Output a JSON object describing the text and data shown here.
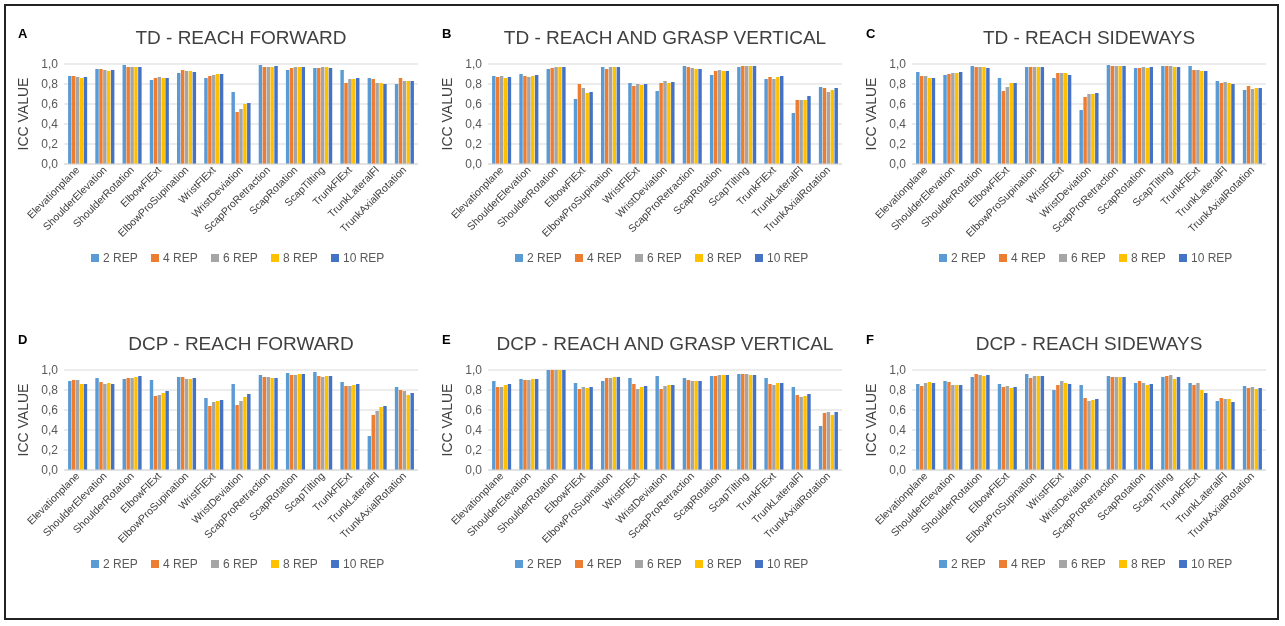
{
  "chart_data": [
    {
      "type": "bar",
      "annotations": [
        "A"
      ],
      "title": "TD - REACH FORWARD",
      "ylabel": "ICC VALUE",
      "categories": [
        "Elevationplane",
        "ShoulderElevation",
        "ShoulderRotation",
        "ElbowFlExt",
        "ElbowProSupination",
        "WristFlExt",
        "WristDeviation",
        "ScapProRetraction",
        "ScapRotation",
        "ScapTilting",
        "TrunkFlExt",
        "TrunkLateralFl",
        "TrunkAxialRotation"
      ],
      "ylim": [
        0,
        1
      ],
      "yticks": [
        {
          "value": 0,
          "label": "0,0"
        },
        {
          "value": 0.2,
          "label": "0,2"
        },
        {
          "value": 0.4,
          "label": "0,4"
        },
        {
          "value": 0.6,
          "label": "0,6"
        },
        {
          "value": 0.8,
          "label": "0,8"
        },
        {
          "value": 1,
          "label": "1,0"
        }
      ],
      "grid": "y",
      "legend": "bottom",
      "series": [
        {
          "name": "2 REP",
          "color": "#5b9bd5",
          "values": [
            0.88,
            0.95,
            0.99,
            0.84,
            0.91,
            0.86,
            0.72,
            0.99,
            0.94,
            0.96,
            0.94,
            0.86,
            0.8
          ]
        },
        {
          "name": "4 REP",
          "color": "#ed7d31",
          "values": [
            0.88,
            0.95,
            0.97,
            0.86,
            0.94,
            0.88,
            0.52,
            0.97,
            0.96,
            0.96,
            0.81,
            0.85,
            0.86
          ]
        },
        {
          "name": "6 REP",
          "color": "#a5a5a5",
          "values": [
            0.87,
            0.94,
            0.97,
            0.87,
            0.93,
            0.89,
            0.55,
            0.97,
            0.97,
            0.97,
            0.85,
            0.81,
            0.83
          ]
        },
        {
          "name": "8 REP",
          "color": "#ffc000",
          "values": [
            0.86,
            0.93,
            0.97,
            0.86,
            0.93,
            0.9,
            0.6,
            0.97,
            0.97,
            0.97,
            0.85,
            0.81,
            0.83
          ]
        },
        {
          "name": "10 REP",
          "color": "#4472c4",
          "values": [
            0.87,
            0.94,
            0.97,
            0.86,
            0.92,
            0.9,
            0.61,
            0.98,
            0.97,
            0.96,
            0.86,
            0.8,
            0.83
          ]
        }
      ]
    },
    {
      "type": "bar",
      "annotations": [
        "B"
      ],
      "title": "TD - REACH AND GRASP VERTICAL",
      "ylabel": "ICC VALUE",
      "categories": [
        "Elevationplane",
        "ShoulderElevation",
        "ShoulderRotation",
        "ElbowFlExt",
        "ElbowProSupination",
        "WristFlExt",
        "WristDeviation",
        "ScapProRetraction",
        "ScapRotation",
        "ScapTilting",
        "TrunkFlExt",
        "TrunkLateralFl",
        "TrunkAxialRotation"
      ],
      "ylim": [
        0,
        1
      ],
      "yticks": [
        {
          "value": 0,
          "label": "0,0"
        },
        {
          "value": 0.2,
          "label": "0,2"
        },
        {
          "value": 0.4,
          "label": "0,4"
        },
        {
          "value": 0.6,
          "label": "0,6"
        },
        {
          "value": 0.8,
          "label": "0,8"
        },
        {
          "value": 1,
          "label": "1,0"
        }
      ],
      "grid": "y",
      "legend": "bottom",
      "series": [
        {
          "name": "2 REP",
          "color": "#5b9bd5",
          "values": [
            0.88,
            0.9,
            0.95,
            0.65,
            0.97,
            0.81,
            0.73,
            0.98,
            0.89,
            0.97,
            0.85,
            0.51,
            0.77
          ]
        },
        {
          "name": "4 REP",
          "color": "#ed7d31",
          "values": [
            0.87,
            0.88,
            0.96,
            0.8,
            0.95,
            0.78,
            0.81,
            0.97,
            0.93,
            0.98,
            0.87,
            0.64,
            0.76
          ]
        },
        {
          "name": "6 REP",
          "color": "#a5a5a5",
          "values": [
            0.88,
            0.87,
            0.97,
            0.76,
            0.97,
            0.8,
            0.83,
            0.96,
            0.94,
            0.98,
            0.85,
            0.64,
            0.72
          ]
        },
        {
          "name": "8 REP",
          "color": "#ffc000",
          "values": [
            0.86,
            0.88,
            0.97,
            0.71,
            0.97,
            0.79,
            0.81,
            0.95,
            0.93,
            0.98,
            0.87,
            0.64,
            0.74
          ]
        },
        {
          "name": "10 REP",
          "color": "#4472c4",
          "values": [
            0.87,
            0.89,
            0.97,
            0.72,
            0.97,
            0.8,
            0.82,
            0.95,
            0.93,
            0.98,
            0.88,
            0.68,
            0.76
          ]
        }
      ]
    },
    {
      "type": "bar",
      "annotations": [
        "C"
      ],
      "title": "TD - REACH SIDEWAYS",
      "ylabel": "ICC VALUE",
      "categories": [
        "Elevationplane",
        "ShoulderElevation",
        "ShoulderRotation",
        "ElbowFlExt",
        "ElbowProSupination",
        "WristFlExt",
        "WristDeviation",
        "ScapProRetraction",
        "ScapRotation",
        "ScapTilting",
        "TrunkFlExt",
        "TrunkLateralFl",
        "TrunkAxialRotation"
      ],
      "ylim": [
        0,
        1
      ],
      "yticks": [
        {
          "value": 0,
          "label": "0,0"
        },
        {
          "value": 0.2,
          "label": "0,2"
        },
        {
          "value": 0.4,
          "label": "0,4"
        },
        {
          "value": 0.6,
          "label": "0,6"
        },
        {
          "value": 0.8,
          "label": "0,8"
        },
        {
          "value": 1,
          "label": "1,0"
        }
      ],
      "grid": "y",
      "legend": "bottom",
      "series": [
        {
          "name": "2 REP",
          "color": "#5b9bd5",
          "values": [
            0.92,
            0.89,
            0.98,
            0.86,
            0.97,
            0.86,
            0.54,
            0.99,
            0.96,
            0.98,
            0.98,
            0.83,
            0.74
          ]
        },
        {
          "name": "4 REP",
          "color": "#ed7d31",
          "values": [
            0.88,
            0.9,
            0.97,
            0.73,
            0.97,
            0.91,
            0.67,
            0.98,
            0.96,
            0.98,
            0.94,
            0.81,
            0.78
          ]
        },
        {
          "name": "6 REP",
          "color": "#a5a5a5",
          "values": [
            0.88,
            0.91,
            0.97,
            0.77,
            0.97,
            0.91,
            0.7,
            0.98,
            0.97,
            0.98,
            0.94,
            0.82,
            0.75
          ]
        },
        {
          "name": "8 REP",
          "color": "#ffc000",
          "values": [
            0.86,
            0.91,
            0.97,
            0.81,
            0.97,
            0.91,
            0.7,
            0.98,
            0.96,
            0.97,
            0.93,
            0.81,
            0.76
          ]
        },
        {
          "name": "10 REP",
          "color": "#4472c4",
          "values": [
            0.86,
            0.92,
            0.96,
            0.81,
            0.97,
            0.89,
            0.71,
            0.98,
            0.97,
            0.97,
            0.93,
            0.8,
            0.76
          ]
        }
      ]
    },
    {
      "type": "bar",
      "annotations": [
        "D"
      ],
      "title": "DCP - REACH FORWARD",
      "ylabel": "ICC VALUE",
      "categories": [
        "Elevationplane",
        "ShoulderElevation",
        "ShoulderRotation",
        "ElbowFlExt",
        "ElbowProSupination",
        "WristFlExt",
        "WristDeviation",
        "ScapProRetraction",
        "ScapRotation",
        "ScapTilting",
        "TrunkFlExt",
        "TrunkLateralFl",
        "TrunkAxialRotation"
      ],
      "ylim": [
        0,
        1
      ],
      "yticks": [
        {
          "value": 0,
          "label": "0,0"
        },
        {
          "value": 0.2,
          "label": "0,2"
        },
        {
          "value": 0.4,
          "label": "0,4"
        },
        {
          "value": 0.6,
          "label": "0,6"
        },
        {
          "value": 0.8,
          "label": "0,8"
        },
        {
          "value": 1,
          "label": "1,0"
        }
      ],
      "grid": "y",
      "legend": "bottom",
      "series": [
        {
          "name": "2 REP",
          "color": "#5b9bd5",
          "values": [
            0.89,
            0.92,
            0.91,
            0.9,
            0.93,
            0.72,
            0.86,
            0.95,
            0.97,
            0.98,
            0.88,
            0.34,
            0.83
          ]
        },
        {
          "name": "4 REP",
          "color": "#ed7d31",
          "values": [
            0.9,
            0.88,
            0.92,
            0.74,
            0.93,
            0.64,
            0.65,
            0.93,
            0.95,
            0.94,
            0.84,
            0.55,
            0.8
          ]
        },
        {
          "name": "6 REP",
          "color": "#a5a5a5",
          "values": [
            0.9,
            0.86,
            0.92,
            0.75,
            0.91,
            0.68,
            0.69,
            0.93,
            0.95,
            0.93,
            0.84,
            0.59,
            0.79
          ]
        },
        {
          "name": "8 REP",
          "color": "#ffc000",
          "values": [
            0.86,
            0.87,
            0.93,
            0.77,
            0.91,
            0.69,
            0.73,
            0.92,
            0.96,
            0.94,
            0.85,
            0.63,
            0.75
          ]
        },
        {
          "name": "10 REP",
          "color": "#4472c4",
          "values": [
            0.86,
            0.86,
            0.94,
            0.79,
            0.92,
            0.7,
            0.76,
            0.92,
            0.96,
            0.94,
            0.86,
            0.64,
            0.77
          ]
        }
      ]
    },
    {
      "type": "bar",
      "annotations": [
        "E"
      ],
      "title": "DCP - REACH AND GRASP VERTICAL",
      "ylabel": "ICC VALUE",
      "categories": [
        "Elevationplane",
        "ShoulderElevation",
        "ShoulderRotation",
        "ElbowFlExt",
        "ElbowProSupination",
        "WristFlExt",
        "WristDeviation",
        "ScapProRetraction",
        "ScapRotation",
        "ScapTilting",
        "TrunkFlExt",
        "TrunkLateralFl",
        "TrunkAxialRotation"
      ],
      "ylim": [
        0,
        1
      ],
      "yticks": [
        {
          "value": 0,
          "label": "0,0"
        },
        {
          "value": 0.2,
          "label": "0,2"
        },
        {
          "value": 0.4,
          "label": "0,4"
        },
        {
          "value": 0.6,
          "label": "0,6"
        },
        {
          "value": 0.8,
          "label": "0,8"
        },
        {
          "value": 1,
          "label": "1,0"
        }
      ],
      "grid": "y",
      "legend": "bottom",
      "series": [
        {
          "name": "2 REP",
          "color": "#5b9bd5",
          "values": [
            0.89,
            0.91,
            1.0,
            0.87,
            0.89,
            0.92,
            0.94,
            0.92,
            0.94,
            0.96,
            0.92,
            0.83,
            0.44
          ]
        },
        {
          "name": "4 REP",
          "color": "#ed7d31",
          "values": [
            0.83,
            0.9,
            1.0,
            0.81,
            0.92,
            0.86,
            0.81,
            0.9,
            0.94,
            0.96,
            0.86,
            0.75,
            0.57
          ]
        },
        {
          "name": "6 REP",
          "color": "#a5a5a5",
          "values": [
            0.83,
            0.9,
            1.0,
            0.83,
            0.92,
            0.81,
            0.84,
            0.89,
            0.95,
            0.96,
            0.85,
            0.73,
            0.58
          ]
        },
        {
          "name": "8 REP",
          "color": "#ffc000",
          "values": [
            0.85,
            0.91,
            1.0,
            0.82,
            0.93,
            0.83,
            0.85,
            0.89,
            0.95,
            0.95,
            0.87,
            0.74,
            0.55
          ]
        },
        {
          "name": "10 REP",
          "color": "#4472c4",
          "values": [
            0.86,
            0.91,
            1.0,
            0.83,
            0.93,
            0.84,
            0.85,
            0.89,
            0.95,
            0.95,
            0.87,
            0.76,
            0.58
          ]
        }
      ]
    },
    {
      "type": "bar",
      "annotations": [
        "F"
      ],
      "title": "DCP - REACH SIDEWAYS",
      "ylabel": "ICC VALUE",
      "categories": [
        "Elevationplane",
        "ShoulderElevation",
        "ShoulderRotation",
        "ElbowFlExt",
        "ElbowProSupination",
        "WristFlExt",
        "WristDeviation",
        "ScapProRetraction",
        "ScapRotation",
        "ScapTilting",
        "TrunkFlExt",
        "TrunkLateralFl",
        "TrunkAxialRotation"
      ],
      "ylim": [
        0,
        1
      ],
      "yticks": [
        {
          "value": 0,
          "label": "0,0"
        },
        {
          "value": 0.2,
          "label": "0,2"
        },
        {
          "value": 0.4,
          "label": "0,4"
        },
        {
          "value": 0.6,
          "label": "0,6"
        },
        {
          "value": 0.8,
          "label": "0,8"
        },
        {
          "value": 1,
          "label": "1,0"
        }
      ],
      "grid": "y",
      "legend": "bottom",
      "series": [
        {
          "name": "2 REP",
          "color": "#5b9bd5",
          "values": [
            0.86,
            0.89,
            0.93,
            0.86,
            0.96,
            0.8,
            0.85,
            0.94,
            0.87,
            0.93,
            0.87,
            0.69,
            0.84
          ]
        },
        {
          "name": "4 REP",
          "color": "#ed7d31",
          "values": [
            0.84,
            0.88,
            0.96,
            0.83,
            0.92,
            0.85,
            0.72,
            0.93,
            0.89,
            0.94,
            0.85,
            0.72,
            0.82
          ]
        },
        {
          "name": "6 REP",
          "color": "#a5a5a5",
          "values": [
            0.87,
            0.85,
            0.95,
            0.84,
            0.94,
            0.89,
            0.69,
            0.93,
            0.87,
            0.95,
            0.87,
            0.71,
            0.83
          ]
        },
        {
          "name": "8 REP",
          "color": "#ffc000",
          "values": [
            0.88,
            0.85,
            0.94,
            0.82,
            0.94,
            0.87,
            0.7,
            0.93,
            0.85,
            0.91,
            0.8,
            0.71,
            0.81
          ]
        },
        {
          "name": "10 REP",
          "color": "#4472c4",
          "values": [
            0.87,
            0.85,
            0.95,
            0.83,
            0.94,
            0.86,
            0.71,
            0.93,
            0.86,
            0.93,
            0.77,
            0.68,
            0.82
          ]
        }
      ]
    }
  ]
}
